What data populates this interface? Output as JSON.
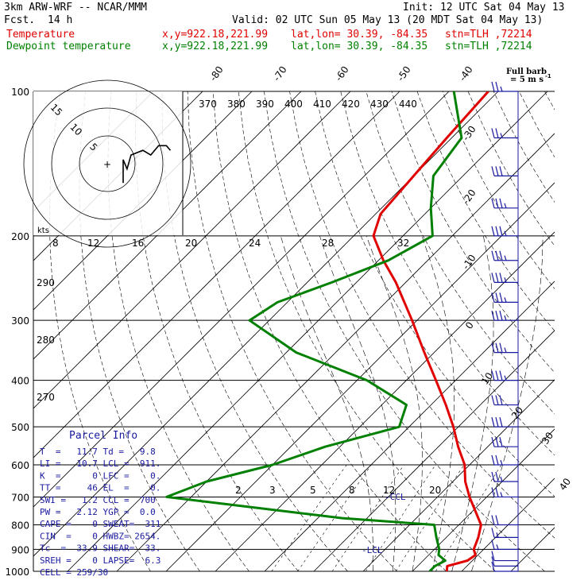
{
  "header": {
    "model": "3km ARW-WRF -- NCAR/MMM",
    "init": "Init: 12 UTC Sat 04 May 13",
    "fcst_label": "Fcst.",
    "fcst_value": "14 h",
    "valid": "Valid: 02 UTC Sun 05 May 13 (20 MDT Sat 04 May 13)",
    "temp_label": "Temperature",
    "dewp_label": "Dewpoint temperature",
    "xy": "x,y=922.18,221.99",
    "latlon": "lat,lon= 30.39, -84.35",
    "stn": "stn=TLH ,72214",
    "full_barb_line1": "Full barb",
    "full_barb_line2": "= 5 m s"
  },
  "colors": {
    "temperature": "#e00000",
    "dewpoint": "#008000",
    "wind": "#1a1aa0",
    "parcel": "#1a1aa0"
  },
  "icons": {
    "hodograph_center": "plus-marker"
  },
  "parcel": {
    "title": "Parcel Info",
    "rows": [
      "T  =   11.7 Td =   9.8",
      "LI =   10.7 LCL =  911.",
      "K  =      0 LFC =    0.",
      "TT =     46 EL  =    0.",
      "SWI =   1.2 CCL =  700",
      "PW =   2.12 YGP =  0.0",
      "CAPE =    0 SWEAT=  311",
      "CIN  =    0 HWBZ= 2654.",
      "Tc  =  33.9 SHEAR=  33.",
      "SREH =    0 LAPSE=  6.3",
      "CELL = 259/30"
    ]
  },
  "markers": {
    "lcl": "-LCL",
    "ccl": "-CCL",
    "kts": "kts"
  },
  "chart_data": {
    "type": "line",
    "skewt": true,
    "pressure_levels": [
      100,
      200,
      300,
      400,
      500,
      600,
      700,
      800,
      900,
      1000
    ],
    "pressure_labels": [
      "100",
      "200",
      "300",
      "400",
      "500",
      "600",
      "700",
      "800",
      "900",
      "1000"
    ],
    "temp_ticks": [
      "-80",
      "-70",
      "-60",
      "-50",
      "-40",
      "-30",
      "-20",
      "-10",
      "0",
      "10",
      "20",
      "30",
      "40"
    ],
    "mixing_ratio_labels": [
      "2",
      "3",
      "5",
      "8",
      "12",
      "20"
    ],
    "theta_labels": [
      "370",
      "380",
      "390",
      "400",
      "410",
      "420",
      "430",
      "440"
    ],
    "theta_labels_left": [
      "290",
      "280",
      "270"
    ],
    "series": [
      {
        "name": "Temperature",
        "points": [
          [
            1000,
            27
          ],
          [
            975,
            26
          ],
          [
            950,
            29
          ],
          [
            925,
            29.5
          ],
          [
            900,
            28
          ],
          [
            850,
            26.5
          ],
          [
            800,
            24.5
          ],
          [
            700,
            16.5
          ],
          [
            650,
            12.5
          ],
          [
            600,
            9
          ],
          [
            550,
            4
          ],
          [
            500,
            -1
          ],
          [
            450,
            -7
          ],
          [
            400,
            -14
          ],
          [
            350,
            -22
          ],
          [
            300,
            -31
          ],
          [
            250,
            -42
          ],
          [
            225,
            -49
          ],
          [
            200,
            -56
          ],
          [
            180,
            -59
          ],
          [
            150,
            -60
          ],
          [
            125,
            -61
          ],
          [
            100,
            -62
          ]
        ]
      },
      {
        "name": "Dewpoint temperature",
        "points": [
          [
            1000,
            23.5
          ],
          [
            975,
            23.5
          ],
          [
            950,
            24.5
          ],
          [
            925,
            22
          ],
          [
            900,
            21
          ],
          [
            850,
            18
          ],
          [
            800,
            15
          ],
          [
            775,
            -5
          ],
          [
            700,
            -45
          ],
          [
            650,
            -40
          ],
          [
            600,
            -30
          ],
          [
            550,
            -23
          ],
          [
            500,
            -12
          ],
          [
            450,
            -15
          ],
          [
            400,
            -28
          ],
          [
            350,
            -48
          ],
          [
            300,
            -64
          ],
          [
            275,
            -62
          ],
          [
            250,
            -55
          ],
          [
            225,
            -48
          ],
          [
            200,
            -44
          ],
          [
            175,
            -50
          ],
          [
            150,
            -56
          ],
          [
            125,
            -58
          ],
          [
            100,
            -69
          ]
        ]
      }
    ],
    "hodograph": {
      "rings": [
        "5",
        "10",
        "15"
      ],
      "points": [
        [
          0,
          1
        ],
        [
          0,
          6
        ],
        [
          1,
          4
        ],
        [
          2,
          7
        ],
        [
          5,
          8
        ],
        [
          7,
          7
        ],
        [
          9,
          9
        ],
        [
          11,
          9
        ],
        [
          12,
          8
        ]
      ]
    },
    "wind_barbs": [
      {
        "p": 1000,
        "speed": 10
      },
      {
        "p": 975,
        "speed": 10
      },
      {
        "p": 950,
        "speed": 10
      },
      {
        "p": 900,
        "speed": 15
      },
      {
        "p": 850,
        "speed": 15
      },
      {
        "p": 800,
        "speed": 20
      },
      {
        "p": 700,
        "speed": 25
      },
      {
        "p": 650,
        "speed": 25
      },
      {
        "p": 600,
        "speed": 25
      },
      {
        "p": 550,
        "speed": 30
      },
      {
        "p": 500,
        "speed": 30
      },
      {
        "p": 450,
        "speed": 30
      },
      {
        "p": 400,
        "speed": 35
      },
      {
        "p": 350,
        "speed": 35
      },
      {
        "p": 300,
        "speed": 35
      },
      {
        "p": 275,
        "speed": 35
      },
      {
        "p": 250,
        "speed": 35
      },
      {
        "p": 225,
        "speed": 35
      },
      {
        "p": 200,
        "speed": 35
      },
      {
        "p": 175,
        "speed": 35
      },
      {
        "p": 150,
        "speed": 30
      },
      {
        "p": 125,
        "speed": 25
      },
      {
        "p": 100,
        "speed": 25
      }
    ]
  }
}
